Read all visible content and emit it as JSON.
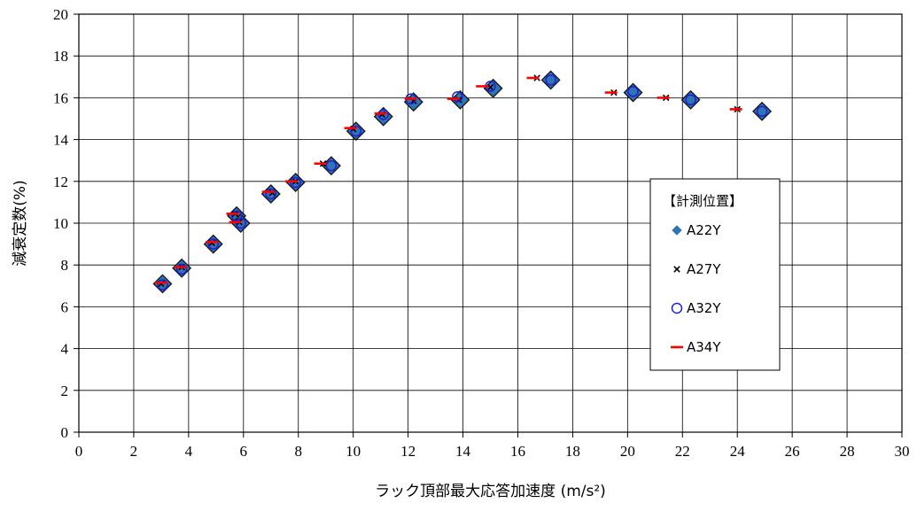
{
  "chart_data": {
    "type": "scatter",
    "title": "",
    "xlabel": "ラック頂部最大応答加速度 (m/s²)",
    "ylabel": "減衰定数(%)",
    "xlim": [
      0,
      30
    ],
    "ylim": [
      0,
      20
    ],
    "x_ticks": [
      0,
      2,
      4,
      6,
      8,
      10,
      12,
      14,
      16,
      18,
      20,
      22,
      24,
      26,
      28,
      30
    ],
    "y_ticks": [
      0,
      2,
      4,
      6,
      8,
      10,
      12,
      14,
      16,
      18,
      20
    ],
    "grid": true,
    "legend_position": "right",
    "legend_title": "【計測位置】",
    "series": [
      {
        "name": "A22Y",
        "marker": "diamond",
        "color": "#2e75b6",
        "points": [
          [
            3.05,
            7.1
          ],
          [
            3.75,
            7.85
          ],
          [
            4.9,
            9.0
          ],
          [
            5.75,
            10.35
          ],
          [
            5.9,
            10.0
          ],
          [
            7.0,
            11.4
          ],
          [
            7.9,
            11.95
          ],
          [
            9.2,
            12.75
          ],
          [
            10.1,
            14.4
          ],
          [
            11.1,
            15.1
          ],
          [
            12.2,
            15.8
          ],
          [
            13.9,
            15.9
          ],
          [
            15.1,
            16.45
          ],
          [
            17.2,
            16.85
          ],
          [
            20.2,
            16.25
          ],
          [
            22.3,
            15.9
          ],
          [
            24.9,
            15.35
          ]
        ]
      },
      {
        "name": "A27Y",
        "marker": "x",
        "color": "#000000",
        "points": [
          [
            3.0,
            7.1
          ],
          [
            3.75,
            7.9
          ],
          [
            4.85,
            9.05
          ],
          [
            5.7,
            10.45
          ],
          [
            5.85,
            10.05
          ],
          [
            7.05,
            11.45
          ],
          [
            7.9,
            12.0
          ],
          [
            8.9,
            12.85
          ],
          [
            10.0,
            14.5
          ],
          [
            11.05,
            15.2
          ],
          [
            12.2,
            15.85
          ],
          [
            13.85,
            15.9
          ],
          [
            15.0,
            16.5
          ],
          [
            16.7,
            16.95
          ],
          [
            19.5,
            16.25
          ],
          [
            21.4,
            16.0
          ],
          [
            24.0,
            15.45
          ]
        ]
      },
      {
        "name": "A32Y",
        "marker": "circle",
        "color": "#1f1fd6",
        "points": [
          [
            3.05,
            7.05
          ],
          [
            3.75,
            7.8
          ],
          [
            4.9,
            9.0
          ],
          [
            5.75,
            10.35
          ],
          [
            5.9,
            10.0
          ],
          [
            7.0,
            11.4
          ],
          [
            7.9,
            11.95
          ],
          [
            9.2,
            12.75
          ],
          [
            10.1,
            14.4
          ],
          [
            11.1,
            15.2
          ],
          [
            12.1,
            15.95
          ],
          [
            13.8,
            16.05
          ],
          [
            15.0,
            16.55
          ],
          [
            17.2,
            16.85
          ],
          [
            20.2,
            16.3
          ],
          [
            22.3,
            15.9
          ],
          [
            24.9,
            15.35
          ]
        ]
      },
      {
        "name": "A34Y",
        "marker": "dash",
        "color": "#ff0000",
        "points": [
          [
            3.0,
            7.15
          ],
          [
            3.7,
            7.9
          ],
          [
            4.85,
            9.1
          ],
          [
            5.6,
            10.45
          ],
          [
            5.7,
            10.05
          ],
          [
            6.9,
            11.5
          ],
          [
            7.75,
            12.0
          ],
          [
            8.8,
            12.85
          ],
          [
            9.9,
            14.55
          ],
          [
            11.0,
            15.25
          ],
          [
            12.1,
            15.95
          ],
          [
            13.65,
            15.95
          ],
          [
            14.7,
            16.55
          ],
          [
            16.55,
            16.95
          ],
          [
            19.4,
            16.25
          ],
          [
            21.3,
            16.0
          ],
          [
            23.95,
            15.45
          ]
        ]
      }
    ]
  }
}
